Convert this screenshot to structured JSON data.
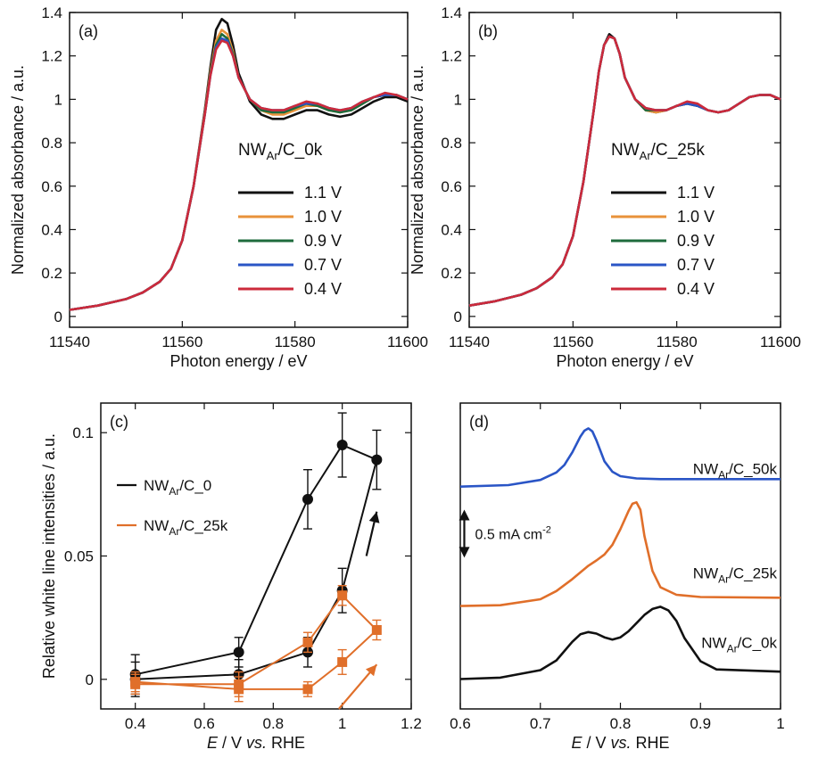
{
  "chart_data": [
    {
      "id": "a",
      "type": "line",
      "panel_label": "(a)",
      "xlabel": "Photon energy / eV",
      "ylabel": "Normalized absorbance / a.u.",
      "xlim": [
        11540,
        11600
      ],
      "ylim": [
        -0.05,
        1.4
      ],
      "xticks": [
        11540,
        11560,
        11580,
        11600
      ],
      "xtick_labels": [
        "11540",
        "11560",
        "11580",
        "11600"
      ],
      "yticks": [
        0,
        0.2,
        0.4,
        0.6,
        0.8,
        1,
        1.2,
        1.4
      ],
      "ytick_labels": [
        "0",
        "0.2",
        "0.4",
        "0.6",
        "0.8",
        "1",
        "1.2",
        "1.4"
      ],
      "legend_title": {
        "main": "NW",
        "sub": "Ar",
        "rest": "/C_0k"
      },
      "legend_position": "right",
      "x": [
        11540,
        11545,
        11550,
        11553,
        11556,
        11558,
        11560,
        11562,
        11564,
        11565,
        11566,
        11567,
        11568,
        11569,
        11570,
        11572,
        11574,
        11576,
        11578,
        11580,
        11582,
        11584,
        11586,
        11588,
        11590,
        11592,
        11594,
        11596,
        11598,
        11600
      ],
      "series": [
        {
          "name": "1.1 V",
          "color": "#111111",
          "values": [
            0.03,
            0.05,
            0.08,
            0.11,
            0.16,
            0.22,
            0.35,
            0.6,
            0.95,
            1.15,
            1.32,
            1.37,
            1.35,
            1.25,
            1.12,
            0.99,
            0.93,
            0.91,
            0.91,
            0.93,
            0.95,
            0.95,
            0.93,
            0.92,
            0.93,
            0.96,
            0.99,
            1.01,
            1.01,
            0.99
          ]
        },
        {
          "name": "1.0 V",
          "color": "#e8923a",
          "values": [
            0.03,
            0.05,
            0.08,
            0.11,
            0.16,
            0.22,
            0.35,
            0.6,
            0.94,
            1.13,
            1.27,
            1.32,
            1.3,
            1.22,
            1.1,
            1.0,
            0.95,
            0.93,
            0.93,
            0.95,
            0.97,
            0.97,
            0.95,
            0.94,
            0.95,
            0.98,
            1.01,
            1.02,
            1.02,
            1.0
          ]
        },
        {
          "name": "0.9 V",
          "color": "#1e6b3c",
          "values": [
            0.03,
            0.05,
            0.08,
            0.11,
            0.16,
            0.22,
            0.35,
            0.6,
            0.93,
            1.12,
            1.25,
            1.3,
            1.28,
            1.21,
            1.1,
            1.0,
            0.95,
            0.94,
            0.94,
            0.96,
            0.98,
            0.97,
            0.95,
            0.94,
            0.95,
            0.98,
            1.01,
            1.02,
            1.02,
            1.0
          ]
        },
        {
          "name": "0.7 V",
          "color": "#2a55c6",
          "values": [
            0.03,
            0.05,
            0.08,
            0.11,
            0.16,
            0.22,
            0.35,
            0.6,
            0.93,
            1.11,
            1.24,
            1.28,
            1.27,
            1.2,
            1.1,
            1.0,
            0.96,
            0.95,
            0.95,
            0.97,
            0.98,
            0.98,
            0.96,
            0.95,
            0.96,
            0.99,
            1.01,
            1.02,
            1.02,
            1.0
          ]
        },
        {
          "name": "0.4 V",
          "color": "#cc2a3b",
          "values": [
            0.03,
            0.05,
            0.08,
            0.11,
            0.16,
            0.22,
            0.35,
            0.6,
            0.93,
            1.11,
            1.23,
            1.27,
            1.26,
            1.2,
            1.1,
            1.0,
            0.96,
            0.95,
            0.95,
            0.97,
            0.99,
            0.98,
            0.96,
            0.95,
            0.96,
            0.99,
            1.01,
            1.03,
            1.02,
            1.0
          ]
        }
      ]
    },
    {
      "id": "b",
      "type": "line",
      "panel_label": "(b)",
      "xlabel": "Photon energy / eV",
      "ylabel": "Normalized absorbance / a.u.",
      "xlim": [
        11540,
        11600
      ],
      "ylim": [
        -0.05,
        1.4
      ],
      "xticks": [
        11540,
        11560,
        11580,
        11600
      ],
      "xtick_labels": [
        "11540",
        "11560",
        "11580",
        "11600"
      ],
      "yticks": [
        0,
        0.2,
        0.4,
        0.6,
        0.8,
        1,
        1.2,
        1.4
      ],
      "ytick_labels": [
        "0",
        "0.2",
        "0.4",
        "0.6",
        "0.8",
        "1",
        "1.2",
        "1.4"
      ],
      "legend_title": {
        "main": "NW",
        "sub": "Ar",
        "rest": "/C_25k"
      },
      "legend_position": "right",
      "x": [
        11540,
        11545,
        11550,
        11553,
        11556,
        11558,
        11560,
        11562,
        11564,
        11565,
        11566,
        11567,
        11568,
        11569,
        11570,
        11572,
        11574,
        11576,
        11578,
        11580,
        11582,
        11584,
        11586,
        11588,
        11590,
        11592,
        11594,
        11596,
        11598,
        11600
      ],
      "series": [
        {
          "name": "1.1 V",
          "color": "#111111",
          "values": [
            0.05,
            0.07,
            0.1,
            0.13,
            0.18,
            0.24,
            0.37,
            0.62,
            0.95,
            1.13,
            1.25,
            1.3,
            1.28,
            1.21,
            1.1,
            1.0,
            0.95,
            0.94,
            0.95,
            0.97,
            0.98,
            0.97,
            0.95,
            0.94,
            0.95,
            0.98,
            1.01,
            1.02,
            1.02,
            1.0
          ]
        },
        {
          "name": "1.0 V",
          "color": "#e8923a",
          "values": [
            0.05,
            0.07,
            0.1,
            0.13,
            0.18,
            0.24,
            0.37,
            0.62,
            0.95,
            1.13,
            1.25,
            1.29,
            1.28,
            1.21,
            1.1,
            1.0,
            0.95,
            0.94,
            0.95,
            0.97,
            0.98,
            0.97,
            0.95,
            0.94,
            0.95,
            0.98,
            1.01,
            1.02,
            1.02,
            1.0
          ]
        },
        {
          "name": "0.9 V",
          "color": "#1e6b3c",
          "values": [
            0.05,
            0.07,
            0.1,
            0.13,
            0.18,
            0.24,
            0.37,
            0.62,
            0.95,
            1.13,
            1.25,
            1.29,
            1.28,
            1.21,
            1.1,
            1.0,
            0.95,
            0.95,
            0.95,
            0.97,
            0.98,
            0.97,
            0.95,
            0.94,
            0.95,
            0.98,
            1.01,
            1.02,
            1.02,
            1.0
          ]
        },
        {
          "name": "0.7 V",
          "color": "#2a55c6",
          "values": [
            0.05,
            0.07,
            0.1,
            0.13,
            0.18,
            0.24,
            0.37,
            0.62,
            0.95,
            1.13,
            1.25,
            1.29,
            1.28,
            1.21,
            1.1,
            1.0,
            0.96,
            0.95,
            0.95,
            0.97,
            0.98,
            0.97,
            0.95,
            0.94,
            0.95,
            0.98,
            1.01,
            1.02,
            1.02,
            1.0
          ]
        },
        {
          "name": "0.4 V",
          "color": "#cc2a3b",
          "values": [
            0.05,
            0.07,
            0.1,
            0.13,
            0.18,
            0.24,
            0.37,
            0.62,
            0.95,
            1.13,
            1.25,
            1.29,
            1.28,
            1.21,
            1.1,
            1.0,
            0.96,
            0.95,
            0.95,
            0.97,
            0.99,
            0.98,
            0.95,
            0.94,
            0.95,
            0.98,
            1.01,
            1.02,
            1.02,
            1.0
          ]
        }
      ]
    },
    {
      "id": "c",
      "type": "scatter",
      "panel_label": "(c)",
      "xlabel": {
        "italic": "E",
        "mid": " / V ",
        "italic2": "vs.",
        "rest": " RHE"
      },
      "ylabel": "Relative white line intensities / a.u.",
      "xlim": [
        0.3,
        1.2
      ],
      "ylim": [
        -0.012,
        0.112
      ],
      "xticks": [
        0.4,
        0.6,
        0.8,
        1.0,
        1.2
      ],
      "xtick_labels": [
        "0.4",
        "0.6",
        "0.8",
        "1",
        "1.2"
      ],
      "yticks": [
        0,
        0.05,
        0.1
      ],
      "ytick_labels": [
        "0",
        "0.05",
        "0.1"
      ],
      "legend_position": "left",
      "series": [
        {
          "name": "NW_Ar/C_0",
          "label": {
            "main": "NW",
            "sub": "Ar",
            "rest": "/C_0"
          },
          "color": "#111111",
          "marker": "circle",
          "points": [
            {
              "x": 0.4,
              "y": 0.002,
              "err": 0.008
            },
            {
              "x": 0.7,
              "y": 0.011,
              "err": 0.006
            },
            {
              "x": 0.9,
              "y": 0.073,
              "err": 0.012
            },
            {
              "x": 1.0,
              "y": 0.095,
              "err": 0.013
            },
            {
              "x": 1.1,
              "y": 0.089,
              "err": 0.012
            },
            {
              "x": 1.0,
              "y": 0.036,
              "err": 0.009
            },
            {
              "x": 0.9,
              "y": 0.011,
              "err": 0.006
            },
            {
              "x": 0.7,
              "y": 0.002,
              "err": 0.006
            },
            {
              "x": 0.4,
              "y": 0.0,
              "err": 0.007
            }
          ]
        },
        {
          "name": "NW_Ar/C_25k",
          "label": {
            "main": "NW",
            "sub": "Ar",
            "rest": "/C_25k"
          },
          "color": "#e06f2a",
          "marker": "square",
          "points": [
            {
              "x": 0.4,
              "y": -0.001,
              "err": 0.004
            },
            {
              "x": 0.7,
              "y": -0.004,
              "err": 0.005
            },
            {
              "x": 0.9,
              "y": -0.004,
              "err": 0.003
            },
            {
              "x": 1.0,
              "y": 0.007,
              "err": 0.005
            },
            {
              "x": 1.1,
              "y": 0.02,
              "err": 0.004
            },
            {
              "x": 1.0,
              "y": 0.034,
              "err": 0.004
            },
            {
              "x": 0.9,
              "y": 0.015,
              "err": 0.004
            },
            {
              "x": 0.7,
              "y": -0.002,
              "err": 0.005
            },
            {
              "x": 0.4,
              "y": -0.002,
              "err": 0.004
            }
          ]
        }
      ],
      "annotations": [
        {
          "type": "arrow",
          "color": "#111111",
          "from": [
            1.07,
            0.05
          ],
          "to": [
            1.1,
            0.068
          ]
        },
        {
          "type": "arrow",
          "color": "#e06f2a",
          "from": [
            0.99,
            -0.012
          ],
          "to": [
            1.1,
            0.006
          ]
        }
      ]
    },
    {
      "id": "d",
      "type": "line",
      "panel_label": "(d)",
      "xlabel": {
        "italic": "E",
        "mid": " / V ",
        "italic2": "vs.",
        "rest": " RHE"
      },
      "xlim": [
        0.6,
        1.0
      ],
      "ylim": [
        -0.2,
        3.9
      ],
      "xticks": [
        0.6,
        0.7,
        0.8,
        0.9,
        1.0
      ],
      "xtick_labels": [
        "0.6",
        "0.7",
        "0.8",
        "0.9",
        "1"
      ],
      "yticks": [],
      "scale_bar": {
        "label_main": "0.5 mA cm",
        "label_sup": "-2",
        "value": 0.5
      },
      "series": [
        {
          "name": "NW_Ar/C_50k",
          "label": {
            "main": "NW",
            "sub": "Ar",
            "rest": "/C_50k"
          },
          "color": "#2a55c6",
          "x": [
            0.6,
            0.66,
            0.7,
            0.72,
            0.73,
            0.74,
            0.75,
            0.755,
            0.76,
            0.765,
            0.77,
            0.78,
            0.79,
            0.8,
            0.82,
            0.85,
            0.9,
            1.0
          ],
          "values": [
            2.78,
            2.8,
            2.87,
            2.97,
            3.07,
            3.24,
            3.45,
            3.53,
            3.56,
            3.52,
            3.4,
            3.12,
            2.98,
            2.92,
            2.89,
            2.88,
            2.88,
            2.88
          ]
        },
        {
          "name": "NW_Ar/C_25k",
          "label": {
            "main": "NW",
            "sub": "Ar",
            "rest": "/C_25k"
          },
          "color": "#e06f2a",
          "x": [
            0.6,
            0.65,
            0.7,
            0.72,
            0.74,
            0.75,
            0.76,
            0.77,
            0.78,
            0.79,
            0.8,
            0.81,
            0.815,
            0.82,
            0.825,
            0.83,
            0.84,
            0.85,
            0.87,
            0.9,
            1.0
          ],
          "values": [
            1.18,
            1.19,
            1.27,
            1.38,
            1.54,
            1.63,
            1.72,
            1.79,
            1.87,
            2.0,
            2.21,
            2.45,
            2.55,
            2.57,
            2.47,
            2.12,
            1.65,
            1.43,
            1.33,
            1.3,
            1.29
          ]
        },
        {
          "name": "NW_Ar/C_0k",
          "label": {
            "main": "NW",
            "sub": "Ar",
            "rest": "/C_0k"
          },
          "color": "#111111",
          "x": [
            0.6,
            0.65,
            0.7,
            0.72,
            0.74,
            0.75,
            0.76,
            0.77,
            0.78,
            0.79,
            0.8,
            0.81,
            0.82,
            0.83,
            0.84,
            0.85,
            0.86,
            0.87,
            0.88,
            0.9,
            0.92,
            1.0
          ],
          "values": [
            0.2,
            0.22,
            0.32,
            0.45,
            0.7,
            0.8,
            0.83,
            0.81,
            0.76,
            0.73,
            0.76,
            0.84,
            0.95,
            1.06,
            1.14,
            1.17,
            1.12,
            0.98,
            0.75,
            0.44,
            0.33,
            0.3
          ]
        }
      ]
    }
  ]
}
